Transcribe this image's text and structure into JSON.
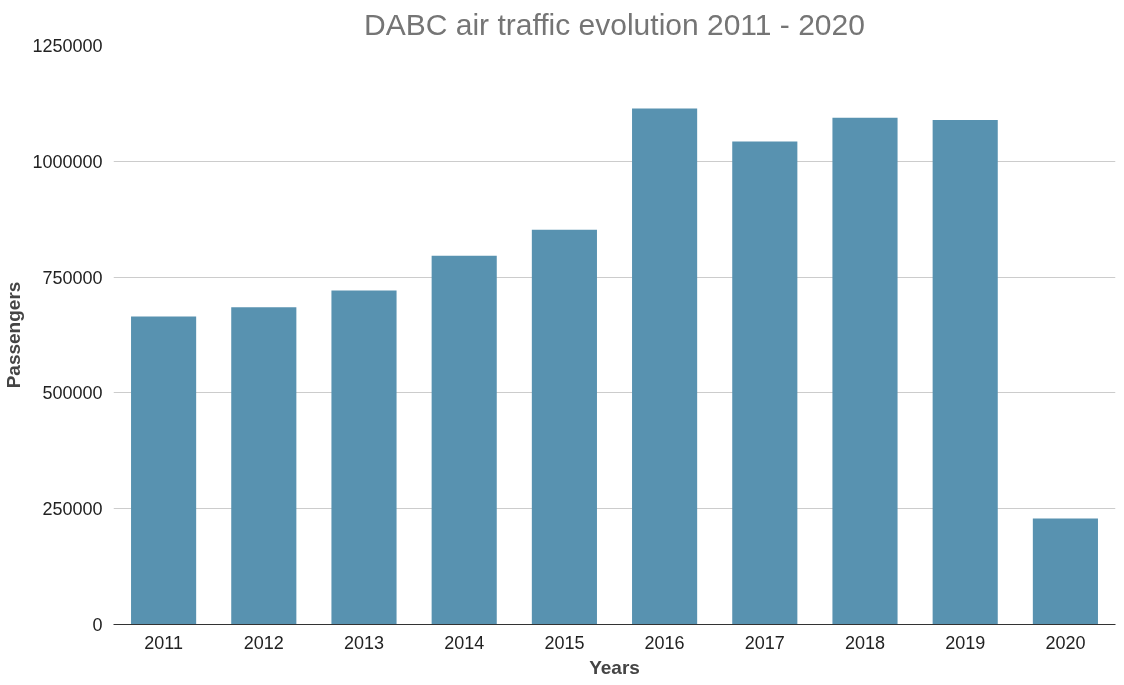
{
  "chart_data": {
    "type": "bar",
    "title": "DABC air traffic evolution 2011 - 2020",
    "xlabel": "Years",
    "ylabel": "Passengers",
    "categories": [
      "2011",
      "2012",
      "2013",
      "2014",
      "2015",
      "2016",
      "2017",
      "2018",
      "2019",
      "2020"
    ],
    "series": [
      {
        "color": "#5892b0",
        "values": [
          665000,
          685000,
          721000,
          796000,
          852000,
          1114000,
          1043000,
          1094000,
          1089000,
          229000
        ]
      }
    ],
    "ylim": [
      0,
      1250000
    ],
    "yticks": [
      0,
      250000,
      500000,
      750000,
      1000000,
      1250000
    ],
    "grid": "y"
  }
}
